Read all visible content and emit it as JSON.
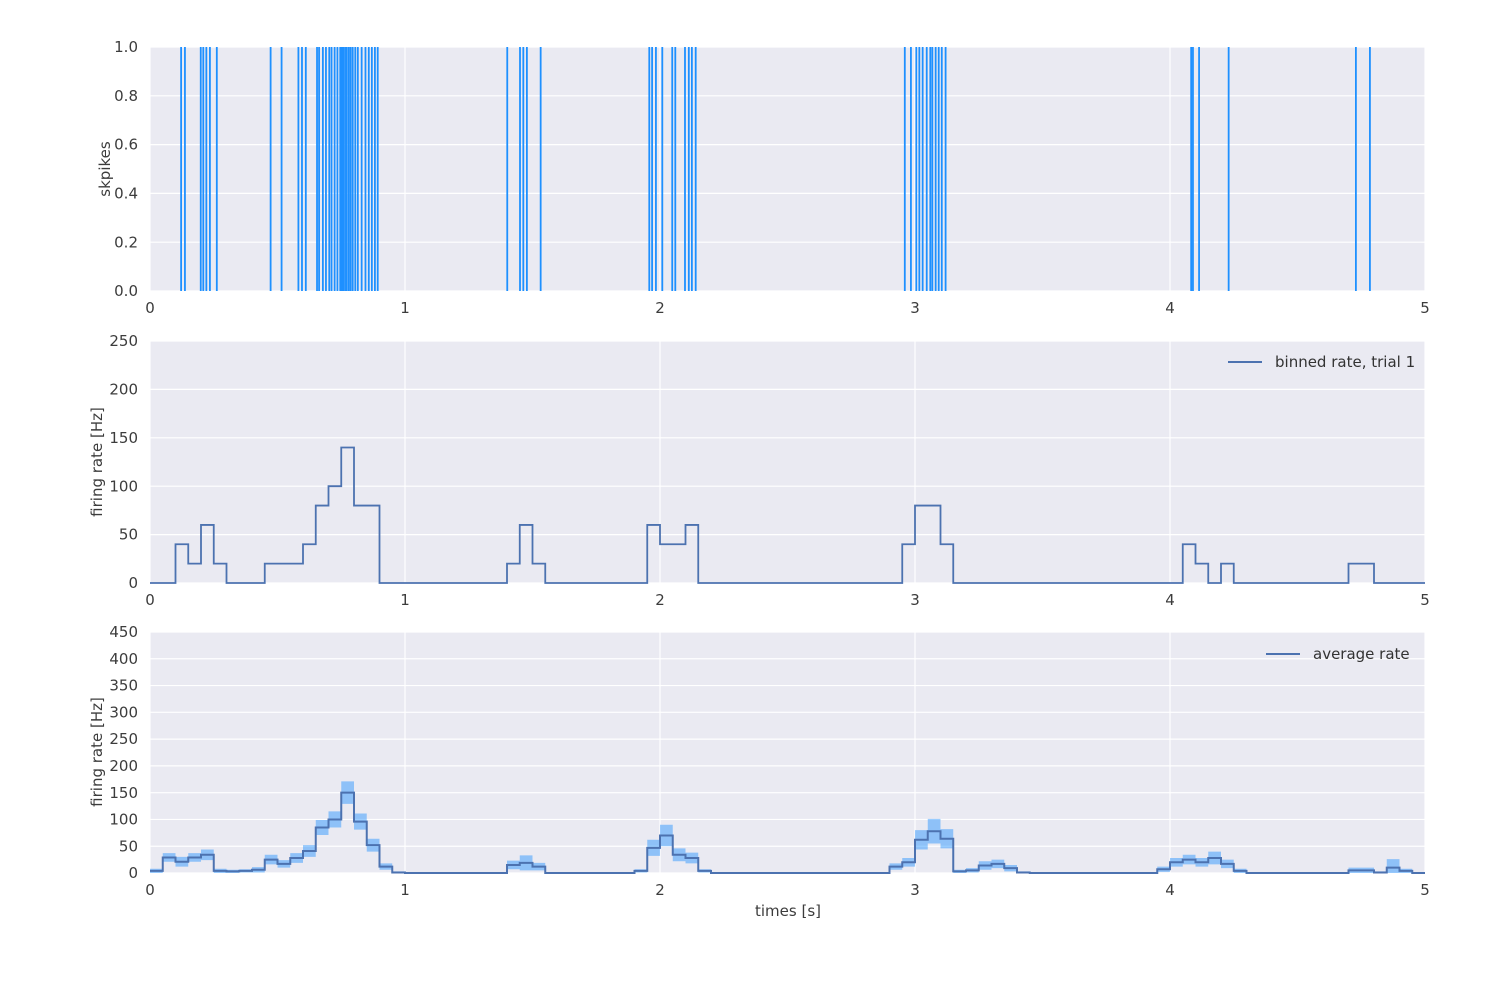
{
  "figure": {
    "background": "#ffffff",
    "axes_background": "#eaeaf2",
    "grid_color": "#ffffff",
    "tick_label_color": "#3c3c3c",
    "spike_color": "#1e90ff",
    "line_color": "#4c72b0",
    "band_color": "rgba(30,144,255,0.45)"
  },
  "chart_data": [
    {
      "type": "raster",
      "title": "",
      "ylabel": "skpikes",
      "xlabel": "",
      "xlim": [
        0,
        5
      ],
      "ylim": [
        0.0,
        1.0
      ],
      "grid": true,
      "xtick_labels": [
        "0",
        "1",
        "2",
        "3",
        "4",
        "5"
      ],
      "ytick_labels": [
        "0.0",
        "0.2",
        "0.4",
        "0.6",
        "0.8",
        "1.0"
      ],
      "spike_times_s": [
        0.122,
        0.137,
        0.199,
        0.209,
        0.221,
        0.235,
        0.262,
        0.473,
        0.516,
        0.582,
        0.596,
        0.611,
        0.655,
        0.663,
        0.678,
        0.69,
        0.703,
        0.712,
        0.724,
        0.735,
        0.746,
        0.752,
        0.758,
        0.765,
        0.772,
        0.78,
        0.787,
        0.795,
        0.805,
        0.815,
        0.83,
        0.845,
        0.858,
        0.87,
        0.882,
        0.893,
        1.401,
        1.451,
        1.464,
        1.478,
        1.532,
        1.958,
        1.969,
        1.984,
        2.009,
        2.048,
        2.06,
        2.098,
        2.113,
        2.125,
        2.14,
        2.96,
        2.984,
        3.005,
        3.017,
        3.03,
        3.046,
        3.06,
        3.068,
        3.081,
        3.093,
        3.105,
        3.12,
        4.083,
        4.09,
        4.114,
        4.23,
        4.729,
        4.784
      ]
    },
    {
      "type": "line",
      "subtype": "step",
      "title": "",
      "legend": "binned rate, trial 1",
      "legend_position": "upper right",
      "ylabel": "firing rate [Hz]",
      "xlabel": "",
      "xlim": [
        0,
        5
      ],
      "ylim": [
        0,
        250
      ],
      "grid": true,
      "bin_width_s": 0.05,
      "xtick_labels": [
        "0",
        "1",
        "2",
        "3",
        "4",
        "5"
      ],
      "ytick_labels": [
        "0",
        "50",
        "100",
        "150",
        "200",
        "250"
      ],
      "values_hz": [
        0,
        0,
        40,
        20,
        60,
        20,
        0,
        0,
        0,
        20,
        20,
        20,
        40,
        80,
        100,
        140,
        80,
        80,
        0,
        0,
        0,
        0,
        0,
        0,
        0,
        0,
        0,
        0,
        20,
        60,
        20,
        0,
        0,
        0,
        0,
        0,
        0,
        0,
        0,
        60,
        40,
        40,
        60,
        0,
        0,
        0,
        0,
        0,
        0,
        0,
        0,
        0,
        0,
        0,
        0,
        0,
        0,
        0,
        0,
        40,
        80,
        80,
        40,
        0,
        0,
        0,
        0,
        0,
        0,
        0,
        0,
        0,
        0,
        0,
        0,
        0,
        0,
        0,
        0,
        0,
        0,
        40,
        20,
        0,
        20,
        0,
        0,
        0,
        0,
        0,
        0,
        0,
        0,
        0,
        20,
        20,
        0,
        0,
        0,
        0
      ]
    },
    {
      "type": "line",
      "subtype": "step-with-error-band",
      "title": "",
      "legend": "average rate",
      "legend_position": "upper right",
      "ylabel": "firing rate [Hz]",
      "xlabel": "times [s]",
      "xlim": [
        0,
        5
      ],
      "ylim": [
        0,
        450
      ],
      "grid": true,
      "bin_width_s": 0.05,
      "xtick_labels": [
        "0",
        "1",
        "2",
        "3",
        "4",
        "5"
      ],
      "ytick_labels": [
        "0",
        "50",
        "100",
        "150",
        "200",
        "250",
        "300",
        "350",
        "400",
        "450"
      ],
      "mean_hz": [
        4,
        29,
        21,
        29,
        34,
        4,
        3,
        4,
        6,
        25,
        17,
        28,
        41,
        85,
        100,
        150,
        96,
        52,
        12,
        1,
        0,
        0,
        0,
        0,
        0,
        0,
        0,
        0,
        15,
        19,
        12,
        0,
        0,
        0,
        0,
        0,
        0,
        0,
        4,
        47,
        70,
        34,
        28,
        4,
        0,
        0,
        0,
        0,
        0,
        0,
        0,
        0,
        0,
        0,
        0,
        0,
        0,
        0,
        12,
        20,
        62,
        78,
        64,
        3,
        5,
        14,
        17,
        9,
        1,
        0,
        0,
        0,
        0,
        0,
        0,
        0,
        0,
        0,
        0,
        7,
        20,
        25,
        20,
        28,
        17,
        4,
        0,
        0,
        0,
        0,
        0,
        0,
        0,
        0,
        5,
        5,
        1,
        10,
        4,
        0
      ],
      "band_halfwidth_hz": [
        4,
        8,
        9,
        8,
        10,
        4,
        3,
        3,
        5,
        9,
        7,
        9,
        11,
        14,
        15,
        21,
        15,
        12,
        6,
        2,
        0,
        0,
        0,
        0,
        0,
        0,
        0,
        0,
        8,
        14,
        7,
        0,
        0,
        0,
        0,
        0,
        0,
        0,
        3,
        15,
        20,
        12,
        10,
        3,
        0,
        0,
        0,
        0,
        0,
        0,
        0,
        0,
        0,
        0,
        0,
        0,
        0,
        0,
        6,
        8,
        18,
        23,
        18,
        3,
        4,
        8,
        8,
        6,
        2,
        0,
        0,
        0,
        0,
        0,
        0,
        0,
        0,
        0,
        0,
        5,
        8,
        9,
        8,
        12,
        8,
        4,
        0,
        0,
        0,
        0,
        0,
        0,
        0,
        0,
        5,
        5,
        2,
        16,
        4,
        0
      ]
    }
  ]
}
